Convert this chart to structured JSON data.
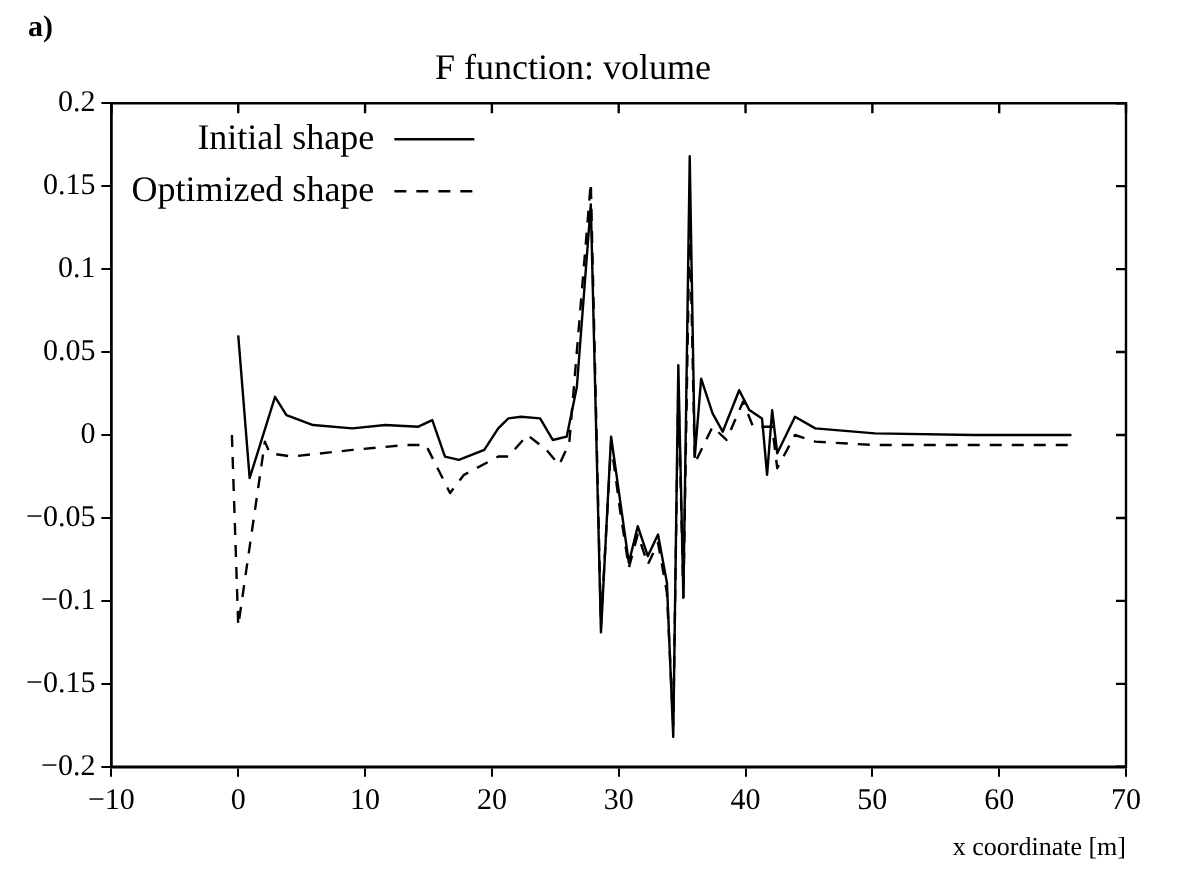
{
  "chart_data": {
    "type": "line",
    "title": "F function: volume",
    "xlabel": "x coordinate [m]",
    "annotations": [
      "a)"
    ],
    "xlim": [
      -10,
      70
    ],
    "xticks": [
      {
        "value": -10,
        "label": "−10"
      },
      0,
      10,
      20,
      30,
      40,
      50,
      60,
      70
    ],
    "ylim": [
      -0.2,
      0.2
    ],
    "yticks": [
      {
        "value": -0.2,
        "label": "−0.2"
      },
      {
        "value": -0.15,
        "label": "−0.15"
      },
      {
        "value": -0.1,
        "label": "−0.1"
      },
      {
        "value": -0.05,
        "label": "−0.05"
      },
      0,
      0.05,
      0.1,
      0.15,
      0.2
    ],
    "grid": false,
    "legend": "top left",
    "marker": "none",
    "series": [
      {
        "name": "Initial shape",
        "color": "#000000",
        "line_style": "solid",
        "x": [
          0,
          0.9,
          2.9,
          3.8,
          5.9,
          9.0,
          11.6,
          14.2,
          15.3,
          16.3,
          17.4,
          19.4,
          20.5,
          21.3,
          22.3,
          23.8,
          24.8,
          25.9,
          26.7,
          27.8,
          28.6,
          29.4,
          30.1,
          30.8,
          31.5,
          32.3,
          33.1,
          33.8,
          34.3,
          34.7,
          35.1,
          35.6,
          36.0,
          36.5,
          37.4,
          38.2,
          39.5,
          40.3,
          41.3,
          41.7,
          42.1,
          42.5,
          43.9,
          45.5,
          50.2,
          58.0,
          65.7
        ],
        "values": [
          0.06,
          -0.026,
          0.023,
          0.012,
          0.006,
          0.004,
          0.006,
          0.005,
          0.009,
          -0.013,
          -0.015,
          -0.009,
          0.004,
          0.01,
          0.011,
          0.01,
          -0.003,
          -0.001,
          0.029,
          0.139,
          -0.119,
          -0.001,
          -0.039,
          -0.077,
          -0.055,
          -0.073,
          -0.06,
          -0.089,
          -0.182,
          0.042,
          -0.098,
          0.168,
          -0.013,
          0.034,
          0.013,
          0.002,
          0.027,
          0.015,
          0.01,
          -0.024,
          0.015,
          -0.011,
          0.011,
          0.004,
          0.001,
          0,
          0
        ]
      },
      {
        "name": "Optimized shape",
        "color": "#000000",
        "line_style": "dashed",
        "x": [
          -0.5,
          0,
          2.1,
          2.5,
          4.2,
          9.0,
          13.2,
          14.8,
          16.7,
          17.8,
          20.5,
          21.3,
          22.8,
          24.3,
          25.3,
          26.1,
          27.8,
          28.6,
          29.4,
          30.1,
          30.8,
          31.5,
          32.3,
          33.1,
          33.8,
          34.3,
          34.7,
          35.1,
          35.6,
          36.0,
          37.4,
          38.5,
          39.8,
          40.6,
          42.1,
          42.5,
          43.9,
          45.5,
          50.0,
          65.7
        ],
        "values": [
          0,
          -0.115,
          -0.004,
          -0.011,
          -0.013,
          -0.009,
          -0.006,
          -0.006,
          -0.035,
          -0.024,
          -0.013,
          -0.013,
          0,
          -0.009,
          -0.018,
          -0.005,
          0.152,
          -0.115,
          -0.005,
          -0.045,
          -0.08,
          -0.06,
          -0.078,
          -0.065,
          -0.095,
          -0.175,
          0.03,
          -0.098,
          0.13,
          -0.017,
          0.005,
          -0.003,
          0.02,
          0.005,
          0.005,
          -0.02,
          0,
          -0.004,
          -0.006,
          -0.006
        ]
      }
    ]
  }
}
